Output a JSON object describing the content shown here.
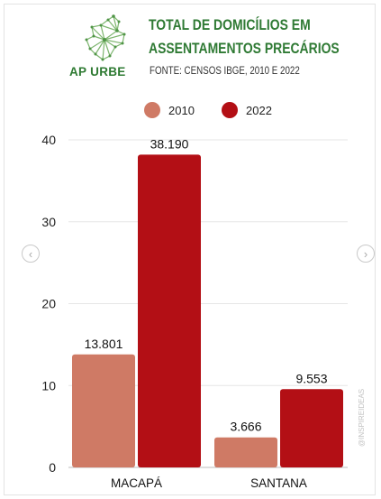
{
  "header": {
    "title_line1": "TOTAL DE DOMICÍLIOS EM",
    "title_line2": "ASSENTAMENTOS PRECÁRIOS",
    "source": "FONTE: CENSOS IBGE, 2010 E 2022",
    "brand": "AP URBE",
    "logo_icon": "network-map-icon"
  },
  "navigation": {
    "prev_icon": "chevron-left-icon",
    "next_icon": "chevron-right-icon",
    "prev_glyph": "‹",
    "next_glyph": "›"
  },
  "watermark": "@INSPIREIDEAS",
  "colors": {
    "brand_green": "#2f7a34",
    "series_2010": "#cf7a65",
    "series_2022": "#b30f15",
    "grid": "#e6e6e6"
  },
  "chart_data": {
    "type": "bar",
    "categories": [
      "MACAPÁ",
      "SANTANA"
    ],
    "series": [
      {
        "name": "2010",
        "values": [
          13.801,
          3.666
        ],
        "labels": [
          "13.801",
          "3.666"
        ],
        "color": "#cf7a65"
      },
      {
        "name": "2022",
        "values": [
          38.19,
          9.553
        ],
        "labels": [
          "38.190",
          "9.553"
        ],
        "color": "#b30f15"
      }
    ],
    "ylim": [
      0,
      40
    ],
    "yticks": [
      0,
      10,
      20,
      30,
      40
    ],
    "grid": true,
    "legend_position": "top-center"
  }
}
